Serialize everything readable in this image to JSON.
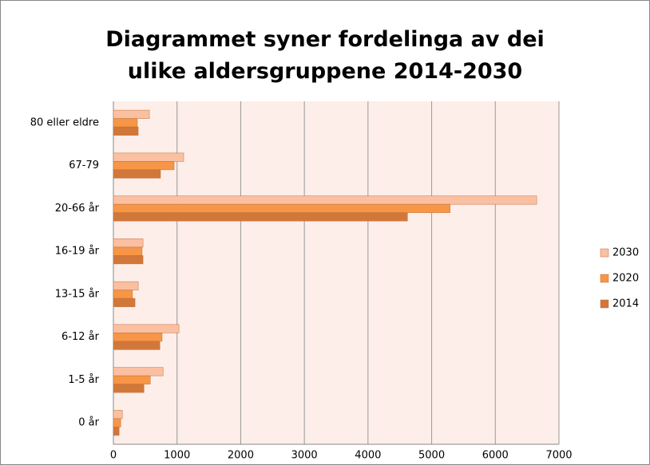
{
  "chart_data": {
    "type": "hbar",
    "title": "Diagrammet syner fordelinga av dei ulike aldersgruppene 2014-2030",
    "categories": [
      "80 eller eldre",
      "67-79",
      "20-66 år",
      "16-19 år",
      "13-15 år",
      "6-12 år",
      "1-5 år",
      "0 år"
    ],
    "series": [
      {
        "name": "2030",
        "color": "#fbc0a1",
        "values": [
          565,
          1104,
          6650,
          465,
          390,
          1030,
          780,
          140
        ]
      },
      {
        "name": "2020",
        "color": "#f79646",
        "values": [
          376,
          954,
          5290,
          450,
          300,
          765,
          580,
          115
        ]
      },
      {
        "name": "2014",
        "color": "#d2773a",
        "values": [
          390,
          740,
          4620,
          465,
          340,
          730,
          480,
          90
        ]
      }
    ],
    "xlim": [
      0,
      7000
    ],
    "xticks": [
      0,
      1000,
      2000,
      3000,
      4000,
      5000,
      6000,
      7000
    ],
    "grid": true,
    "legend": "right"
  }
}
